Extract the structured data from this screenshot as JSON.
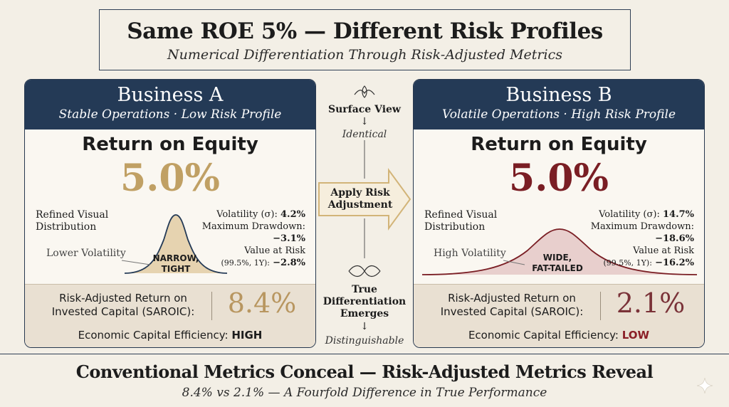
{
  "header": {
    "title": "Same ROE 5% — Different Risk Profiles",
    "subtitle": "Numerical Differentiation Through Risk-Adjusted Metrics"
  },
  "business_a": {
    "name": "Business A",
    "description": "Stable Operations · Low Risk Profile",
    "roe_label": "Return on Equity",
    "roe_value": "5.0%",
    "dist_label_1": "Refined Visual",
    "dist_label_2": "Distribution",
    "volatility_label": "Volatility (σ):",
    "volatility_value": "4.2%",
    "drawdown_label": "Maximum Drawdown:",
    "drawdown_value": "−3.1%",
    "var_label": "Value at Risk",
    "var_params": "(99.5%, 1Y):",
    "var_value": "−2.8%",
    "curve_tag": "Lower Volatility",
    "curve_text_1": "NARROW,",
    "curve_text_2": "TIGHT",
    "saroic_label_1": "Risk-Adjusted Return on",
    "saroic_label_2": "Invested Capital (SAROIC):",
    "saroic_value": "8.4%",
    "efficiency_label": "Economic Capital Efficiency:",
    "efficiency_value": "HIGH",
    "accent_color": "#c0a064"
  },
  "business_b": {
    "name": "Business B",
    "description": "Volatile Operations · High Risk Profile",
    "roe_label": "Return on Equity",
    "roe_value": "5.0%",
    "dist_label_1": "Refined Visual",
    "dist_label_2": "Distribution",
    "volatility_label": "Volatility (σ):",
    "volatility_value": "14.7%",
    "drawdown_label": "Maximum Drawdown:",
    "drawdown_value": "−18.6%",
    "var_label": "Value at Risk",
    "var_params": "(99.5%, 1Y):",
    "var_value": "−16.2%",
    "curve_tag": "High Volatility",
    "curve_text_1": "WIDE,",
    "curve_text_2": "FAT-TAILED",
    "saroic_label_1": "Risk-Adjusted Return on",
    "saroic_label_2": "Invested Capital (SAROIC):",
    "saroic_value": "2.1%",
    "efficiency_label": "Economic Capital Efficiency:",
    "efficiency_value": "LOW",
    "accent_color": "#7a1e24"
  },
  "middle": {
    "surface_view": "Surface View",
    "identical": "Identical",
    "apply_1": "Apply Risk",
    "apply_2": "Adjustment",
    "true_1": "True",
    "true_2": "Differentiation",
    "true_3": "Emerges",
    "distinguishable": "Distinguishable",
    "down_arrow": "↓"
  },
  "footer": {
    "title": "Conventional Metrics Conceal — Risk-Adjusted Metrics Reveal",
    "subtitle": "8.4% vs 2.1% — A Fourfold Difference in True Performance"
  },
  "icons": [
    "ornament-icon",
    "arrow-right-icon",
    "sparkle-icon"
  ]
}
